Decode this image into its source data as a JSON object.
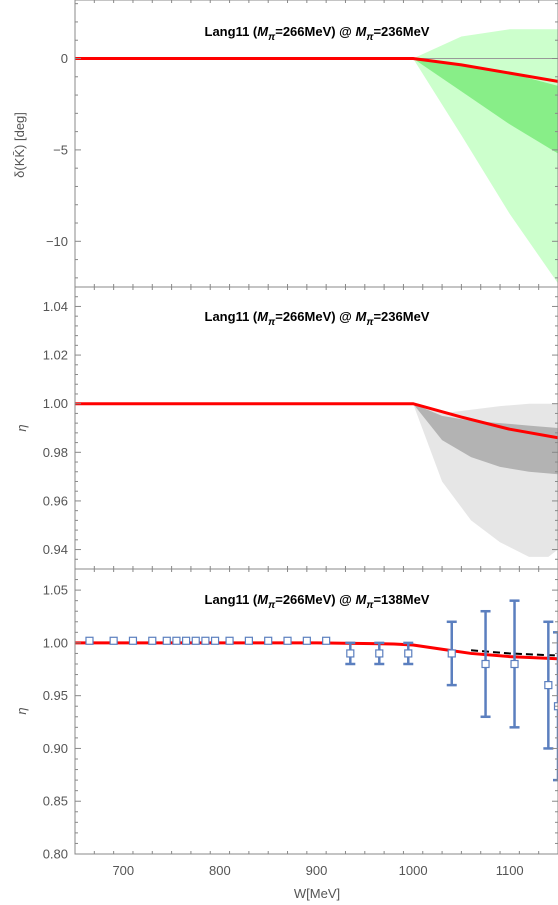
{
  "chart_data": [
    {
      "type": "line",
      "title_prefix": "Lang11 (",
      "title_m1": "M",
      "title_s1": "π",
      "title_mid": "=266MeV) @ ",
      "title_m2": "M",
      "title_s2": "π",
      "title_suffix": "=236MeV",
      "ylabel": "δ(KK̄) [deg]",
      "xlim": [
        650,
        1150
      ],
      "ylim": [
        -12.5,
        3.2
      ],
      "yticks": [
        0,
        -5,
        -10
      ],
      "ytick_labels": [
        "0",
        "−5",
        "−10"
      ],
      "colors": {
        "central": "#ff0000",
        "band_inner": "#66ee66",
        "band_outer": "#ccffcc",
        "ref": "#888888"
      },
      "bands": [
        {
          "x": [
            1000,
            1050,
            1100,
            1150
          ],
          "lower": [
            0,
            -4.2,
            -8.5,
            -12.3
          ],
          "upper": [
            0,
            1.2,
            1.6,
            1.6
          ],
          "fill": "#ccffcc"
        },
        {
          "x": [
            1000,
            1050,
            1100,
            1150
          ],
          "lower": [
            0,
            -1.8,
            -3.6,
            -5.2
          ],
          "upper": [
            0,
            -0.3,
            -0.8,
            -1.5
          ],
          "fill": "#88ee88"
        }
      ],
      "series": [
        {
          "x": [
            650,
            1000,
            1050,
            1100,
            1150
          ],
          "y": [
            0,
            0,
            -0.35,
            -0.8,
            -1.25
          ],
          "color": "#ff0000"
        }
      ],
      "reference_line": 0
    },
    {
      "type": "line",
      "title_prefix": "Lang11 (",
      "title_m1": "M",
      "title_s1": "π",
      "title_mid": "=266MeV) @ ",
      "title_m2": "M",
      "title_s2": "π",
      "title_suffix": "=236MeV",
      "ylabel": "η",
      "xlim": [
        650,
        1150
      ],
      "ylim": [
        0.932,
        1.048
      ],
      "yticks": [
        0.94,
        0.96,
        0.98,
        1.0,
        1.02,
        1.04
      ],
      "ytick_labels": [
        "0.94",
        "0.96",
        "0.98",
        "1.00",
        "1.02",
        "1.04"
      ],
      "bands": [
        {
          "x": [
            1000,
            1030,
            1060,
            1090,
            1120,
            1140,
            1150
          ],
          "lower": [
            1.0,
            0.968,
            0.952,
            0.943,
            0.937,
            0.937,
            0.94
          ],
          "upper": [
            1.0,
            0.996,
            0.9975,
            0.999,
            1.0,
            1.0,
            1.0
          ],
          "fill": "#e6e6e6"
        },
        {
          "x": [
            1000,
            1030,
            1060,
            1090,
            1120,
            1150
          ],
          "lower": [
            1.0,
            0.985,
            0.978,
            0.974,
            0.972,
            0.971
          ],
          "upper": [
            1.0,
            0.995,
            0.993,
            0.992,
            0.991,
            0.99
          ],
          "fill": "#b3b3b3"
        }
      ],
      "series": [
        {
          "x": [
            650,
            1000,
            1050,
            1100,
            1150
          ],
          "y": [
            1.0,
            1.0,
            0.9945,
            0.9895,
            0.986
          ],
          "color": "#ff0000"
        }
      ]
    },
    {
      "type": "line",
      "title_prefix": "Lang11 (",
      "title_m1": "M",
      "title_s1": "π",
      "title_mid": "=266MeV) @ ",
      "title_m2": "M",
      "title_s2": "π",
      "title_suffix": "=138MeV",
      "xlabel": "W[MeV]",
      "ylabel": "η",
      "xlim": [
        650,
        1150
      ],
      "ylim": [
        0.8,
        1.07
      ],
      "yticks": [
        0.8,
        0.85,
        0.9,
        0.95,
        1.0,
        1.05
      ],
      "ytick_labels": [
        "0.80",
        "0.85",
        "0.90",
        "0.95",
        "1.00",
        "1.05"
      ],
      "xticks": [
        700,
        800,
        900,
        1000,
        1100
      ],
      "xtick_labels": [
        "700",
        "800",
        "900",
        "1000",
        "1100"
      ],
      "series": [
        {
          "x": [
            650,
            900,
            980,
            1000,
            1030,
            1060,
            1100,
            1150
          ],
          "y": [
            1.0,
            1.0,
            0.999,
            0.998,
            0.994,
            0.99,
            0.987,
            0.985
          ],
          "color": "#ff0000"
        },
        {
          "x": [
            1060,
            1100,
            1150
          ],
          "y": [
            0.993,
            0.99,
            0.988
          ],
          "color": "#000000",
          "dashed": true
        }
      ],
      "points": {
        "x": [
          665,
          690,
          710,
          730,
          745,
          755,
          765,
          775,
          785,
          795,
          810,
          830,
          850,
          870,
          890,
          910,
          935,
          965,
          995,
          1040,
          1075,
          1105,
          1140,
          1150
        ],
        "y": [
          1.002,
          1.002,
          1.002,
          1.002,
          1.002,
          1.002,
          1.002,
          1.002,
          1.002,
          1.002,
          1.002,
          1.002,
          1.002,
          1.002,
          1.002,
          1.002,
          0.99,
          0.99,
          0.99,
          0.99,
          0.98,
          0.98,
          0.96,
          0.94
        ],
        "err": [
          0,
          0,
          0,
          0,
          0,
          0,
          0,
          0,
          0,
          0,
          0,
          0,
          0,
          0,
          0,
          0,
          0.01,
          0.01,
          0.01,
          0.03,
          0.05,
          0.06,
          0.06,
          0.07
        ],
        "color": "#5b7fbf"
      }
    }
  ]
}
